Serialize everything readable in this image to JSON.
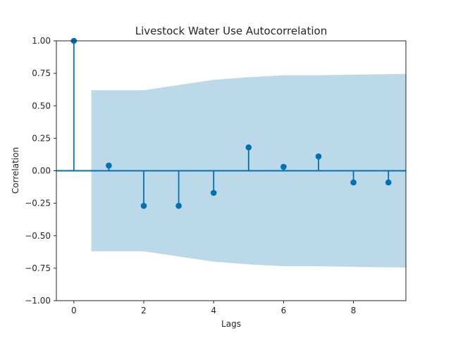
{
  "chart_data": {
    "type": "stem",
    "title": "Livestock Water Use Autocorrelation",
    "xlabel": "Lags",
    "ylabel": "Correlation",
    "xlim": [
      -0.5,
      9.5
    ],
    "ylim": [
      -1.0,
      1.0
    ],
    "x_ticks": [
      0,
      2,
      4,
      6,
      8
    ],
    "x_tick_labels": [
      "0",
      "2",
      "4",
      "6",
      "8"
    ],
    "y_ticks": [
      -1.0,
      -0.75,
      -0.5,
      -0.25,
      0.0,
      0.25,
      0.5,
      0.75,
      1.0
    ],
    "y_tick_labels": [
      "−1.00",
      "−0.75",
      "−0.50",
      "−0.25",
      "0.00",
      "0.25",
      "0.50",
      "0.75",
      "1.00"
    ],
    "grid": false,
    "series": [
      {
        "lags": [
          0,
          1,
          2,
          3,
          4,
          5,
          6,
          7,
          8,
          9
        ],
        "values": [
          1.0,
          0.04,
          -0.27,
          -0.27,
          -0.17,
          0.18,
          0.03,
          0.11,
          -0.09,
          -0.09
        ],
        "color": "#0072b2"
      }
    ],
    "confidence_band": {
      "color": "#bcd9ea",
      "points": [
        {
          "x": 0.5,
          "upper": 0.62,
          "lower": -0.62
        },
        {
          "x": 1,
          "upper": 0.62,
          "lower": -0.62
        },
        {
          "x": 2,
          "upper": 0.62,
          "lower": -0.62
        },
        {
          "x": 3,
          "upper": 0.66,
          "lower": -0.66
        },
        {
          "x": 4,
          "upper": 0.7,
          "lower": -0.7
        },
        {
          "x": 5,
          "upper": 0.72,
          "lower": -0.72
        },
        {
          "x": 6,
          "upper": 0.735,
          "lower": -0.735
        },
        {
          "x": 7,
          "upper": 0.735,
          "lower": -0.735
        },
        {
          "x": 8,
          "upper": 0.74,
          "lower": -0.74
        },
        {
          "x": 9.5,
          "upper": 0.745,
          "lower": -0.745
        }
      ]
    }
  }
}
